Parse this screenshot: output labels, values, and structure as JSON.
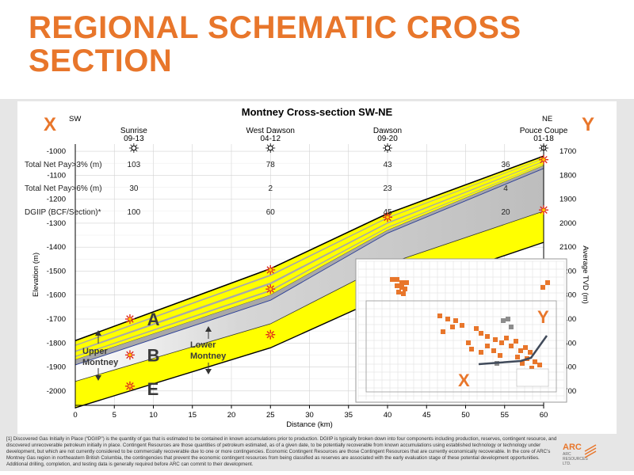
{
  "title": "REGIONAL SCHEMATIC CROSS SECTION",
  "footnote": "[1] Discovered Gas Initially in Place (“DGIIP”) is the quantity of gas that is estimated to be contained in known accumulations prior to production. DGIIP is typically broken down into four components including production, reserves, contingent resource, and discovered unrecoverable petroleum initially in place. Contingent Resources are those quantities of petroleum estimated, as of a given date, to be potentially recoverable from known accumulations using established technology or technology under development, but which are not currently considered to be commercially recoverable due to one or more contingencies. Economic Contingent Resources are those Contingent Resources that are currently economically recoverable. In the core of ARC’s Montney Gas region in northeastern British Columbia, the contingencies that prevent the economic contingent resources from being classified as reserves are associated with the early evaluation stage of these potential development opportunities. Additional drilling, completion, and testing data is generally required before ARC can commit to their development.",
  "logo": {
    "text1": "ARC",
    "text2": "ARC",
    "text3": "RESOURCES",
    "text4": "LTD."
  },
  "colors": {
    "orange": "#e8762b",
    "yellow": "#ffff00",
    "blue": "#2b3e9a",
    "gray": "#bdbdbd"
  },
  "chart_data": {
    "type": "line",
    "title": "Montney Cross-section SW-NE",
    "xlabel": "Distance (km)",
    "ylabel": "Elevation (m)",
    "y2label": "Average TVD (m)",
    "xlim": [
      0,
      60
    ],
    "ylim": [
      -2060,
      -970
    ],
    "xticks": [
      0,
      5,
      10,
      15,
      20,
      25,
      30,
      35,
      40,
      45,
      50,
      55,
      60
    ],
    "yticks": [
      -1000,
      -1100,
      -1200,
      -1300,
      -1400,
      -1500,
      -1600,
      -1700,
      -1800,
      -1900,
      -2000
    ],
    "y2ticks": [
      1700,
      1800,
      1900,
      2000,
      2100,
      2200,
      2300,
      2400,
      2500,
      2600,
      2700
    ],
    "corner_labels": {
      "left": "X",
      "right": "Y",
      "sw": "SW",
      "ne": "NE"
    },
    "wells": [
      {
        "name": "Sunrise",
        "date": "09-13",
        "x": 7.5
      },
      {
        "name": "West Dawson",
        "date": "04-12",
        "x": 25
      },
      {
        "name": "Dawson",
        "date": "09-20",
        "x": 40
      },
      {
        "name": "Pouce Coupe",
        "date": "01-18",
        "x": 60
      }
    ],
    "table": {
      "rows": [
        {
          "label": "Total Net Pay>3% (m)",
          "values": [
            "103",
            "78",
            "43",
            "36"
          ]
        },
        {
          "label": "Total Net Pay>6% (m)",
          "values": [
            "30",
            "2",
            "23",
            "4"
          ]
        },
        {
          "label": "DGIIP (BCF/Section)*",
          "values": [
            "100",
            "60",
            "45",
            "20"
          ]
        }
      ]
    },
    "surfaces": [
      {
        "name": "top",
        "x": [
          0,
          25,
          40,
          60
        ],
        "y": [
          -1790,
          -1490,
          -1260,
          -1020
        ]
      },
      {
        "name": "lower_top",
        "x": [
          0,
          25,
          40,
          60
        ],
        "y": [
          -1870,
          -1600,
          -1330,
          -1060
        ]
      },
      {
        "name": "blue",
        "x": [
          0,
          25,
          40,
          60
        ],
        "y": [
          -1890,
          -1620,
          -1340,
          -1070
        ]
      },
      {
        "name": "lower_base",
        "x": [
          0,
          25,
          40,
          60
        ],
        "y": [
          -1960,
          -1720,
          -1470,
          -1250
        ]
      },
      {
        "name": "base",
        "x": [
          0,
          25,
          40,
          60
        ],
        "y": [
          -2070,
          -1820,
          -1600,
          -1380
        ]
      }
    ],
    "zone_labels": [
      {
        "text": "A",
        "x": 9,
        "y": -1700
      },
      {
        "text": "B",
        "x": 9,
        "y": -1850
      },
      {
        "text": "E",
        "x": 9,
        "y": -1990
      }
    ],
    "annotations": [
      {
        "text": "Upper Montney",
        "x": 1.2,
        "y": -1840
      },
      {
        "text": "Lower Montney",
        "x": 14.5,
        "y": -1820
      }
    ],
    "targets": [
      {
        "x": 7,
        "y": -1700
      },
      {
        "x": 7,
        "y": -1850
      },
      {
        "x": 7,
        "y": -1980
      },
      {
        "x": 25,
        "y": -1495
      },
      {
        "x": 25,
        "y": -1575
      },
      {
        "x": 25,
        "y": -1765
      },
      {
        "x": 40,
        "y": -1275
      },
      {
        "x": 60,
        "y": -1035
      },
      {
        "x": 60,
        "y": -1245
      }
    ],
    "inset_labels": {
      "left": "X",
      "right": "Y"
    }
  }
}
